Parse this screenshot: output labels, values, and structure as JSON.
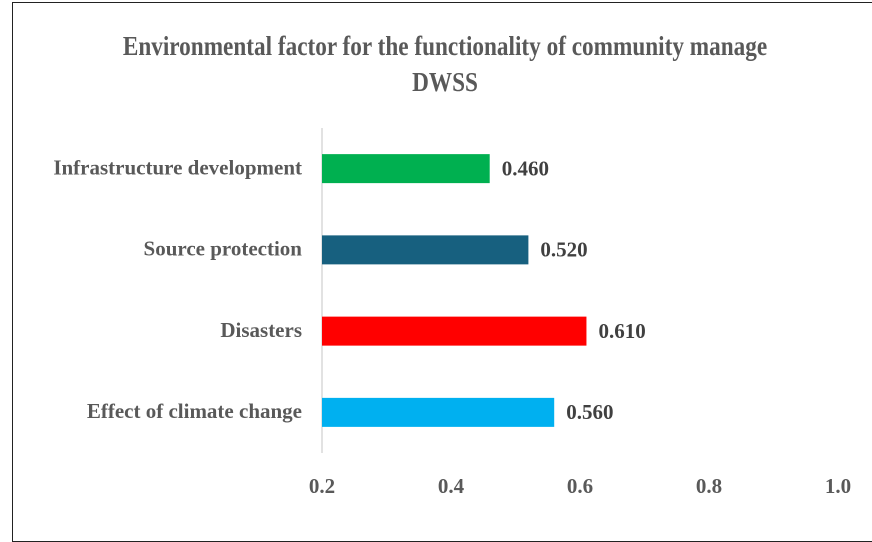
{
  "chart_data": {
    "type": "barh",
    "title": "Environmental factor for the functionality of community manage DWSS",
    "categories": [
      "Infrastructure development",
      "Source protection",
      "Disasters",
      "Effect of climate change"
    ],
    "values": [
      0.46,
      0.52,
      0.61,
      0.56
    ],
    "value_labels": [
      "0.460",
      "0.520",
      "0.610",
      "0.560"
    ],
    "colors": [
      "#00b050",
      "#17607f",
      "#ff0000",
      "#00b0f0"
    ],
    "xlim": [
      0.2,
      1
    ],
    "xticks": [
      0.2,
      0.4,
      0.6,
      0.8,
      {
        "value": 1,
        "label": "1.0"
      }
    ],
    "grid": false
  }
}
